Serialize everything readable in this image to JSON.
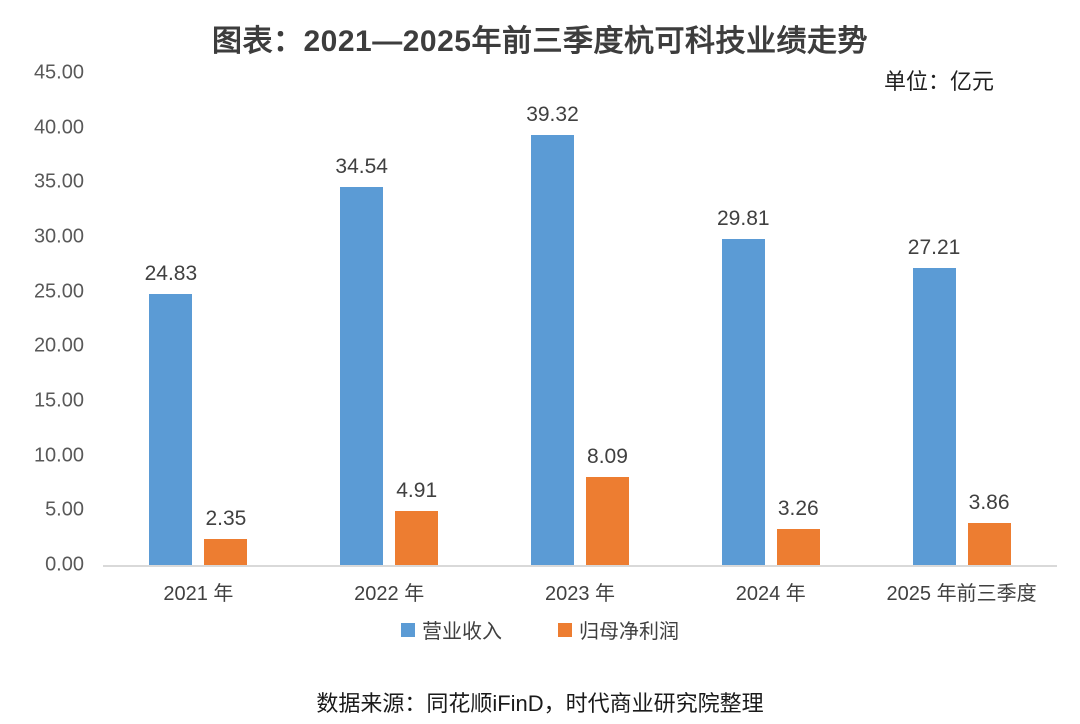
{
  "title": "图表：2021—2025年前三季度杭可科技业绩走势",
  "unit_label": "单位：亿元",
  "source": "数据来源：同花顺iFinD，时代商业研究院整理",
  "colors": {
    "revenue_blue": "#5B9BD5",
    "profit_orange": "#ED7D31",
    "axis_line_gray": "#D9D9D9",
    "axis_text_gray": "#595959",
    "label_text_gray": "#404040"
  },
  "chart_data": {
    "type": "bar",
    "title": "图表：2021—2025年前三季度杭可科技业绩走势",
    "unit": "单位：亿元",
    "categories": [
      "2021 年",
      "2022 年",
      "2023 年",
      "2024 年",
      "2025 年前三季度"
    ],
    "series": [
      {
        "name": "营业收入",
        "color": "#5B9BD5",
        "values": [
          24.83,
          34.54,
          39.32,
          29.81,
          27.21
        ],
        "labels": [
          "24.83",
          "34.54",
          "39.32",
          "29.81",
          "27.21"
        ]
      },
      {
        "name": "归母净利润",
        "color": "#ED7D31",
        "values": [
          2.35,
          4.91,
          8.09,
          3.26,
          3.86
        ],
        "labels": [
          "2.35",
          "4.91",
          "8.09",
          "3.26",
          "3.86"
        ]
      }
    ],
    "xlabel": "",
    "ylabel": "",
    "ylim": [
      0,
      45
    ],
    "ytick_step": 5,
    "yticks": [
      "45.00",
      "40.00",
      "35.00",
      "30.00",
      "25.00",
      "20.00",
      "15.00",
      "10.00",
      "5.00",
      "0.00"
    ],
    "grid": false,
    "legend_position": "bottom"
  }
}
